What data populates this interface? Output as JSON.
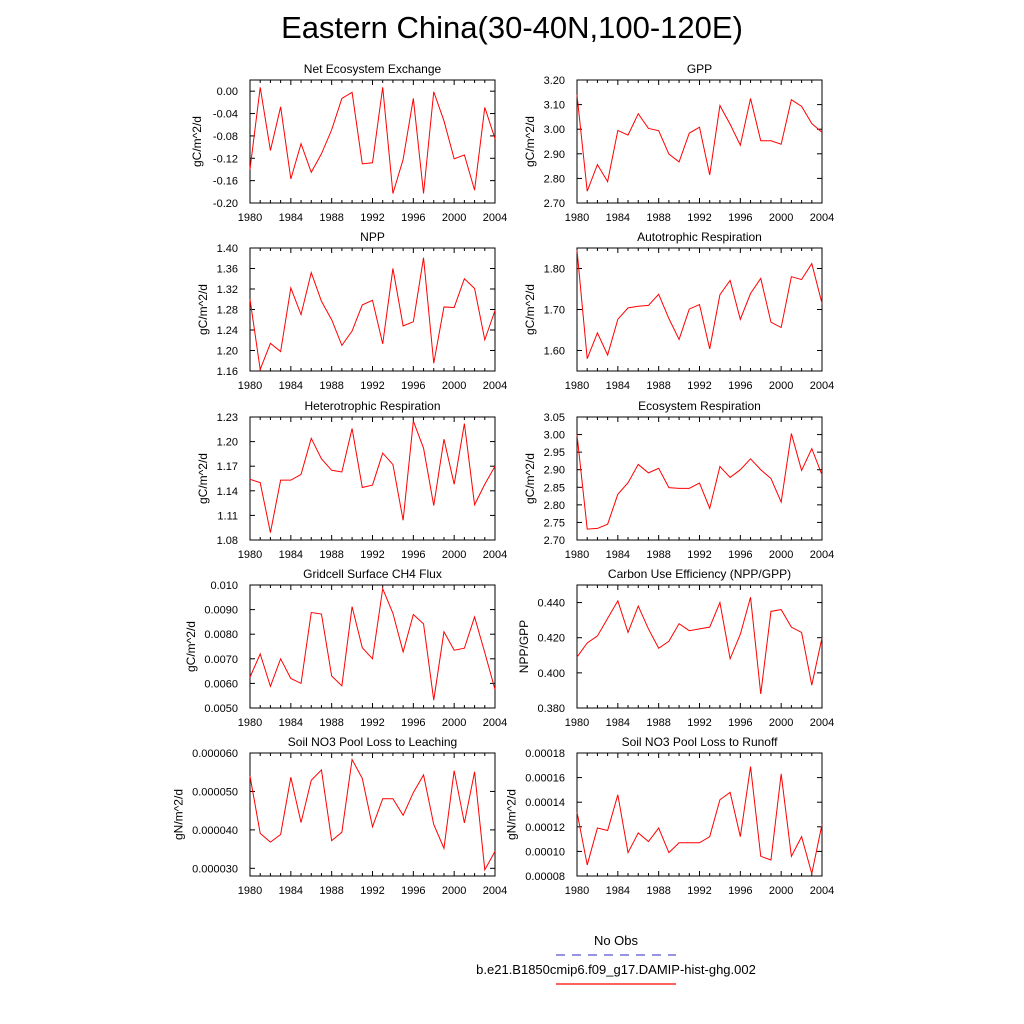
{
  "figure": {
    "title": "Eastern China(30-40N,100-120E)"
  },
  "legend": {
    "entries": [
      {
        "label": "No Obs",
        "color": "#5555cc",
        "style": "dashed"
      },
      {
        "label": "b.e21.B1850cmip6.f09_g17.DAMIP-hist-ghg.002",
        "color": "#ff0000",
        "style": "solid"
      }
    ]
  },
  "chart_data": [
    {
      "type": "line",
      "title": "Net Ecosystem Exchange",
      "xlabel": "",
      "ylabel": "gC/m^2/d",
      "xlim": [
        1980,
        2004
      ],
      "ylim": [
        -0.2,
        0.02
      ],
      "xticks": [
        "1980",
        "1984",
        "1988",
        "1992",
        "1996",
        "2000",
        "2004"
      ],
      "yticks": [
        "0.00",
        "-0.04",
        "-0.08",
        "-0.12",
        "-0.16",
        "-0.20"
      ],
      "ytick_values": [
        0.0,
        -0.04,
        -0.08,
        -0.12,
        -0.16,
        -0.2
      ],
      "x": [
        1980,
        1981,
        1982,
        1983,
        1984,
        1985,
        1986,
        1987,
        1988,
        1989,
        1990,
        1991,
        1992,
        1993,
        1994,
        1995,
        1996,
        1997,
        1998,
        1999,
        2000,
        2001,
        2002,
        2003,
        2004
      ],
      "series": [
        {
          "color": "#ff0000",
          "values": [
            -0.14,
            0.007,
            -0.106,
            -0.028,
            -0.157,
            -0.094,
            -0.145,
            -0.112,
            -0.069,
            -0.013,
            -0.002,
            -0.13,
            -0.128,
            0.007,
            -0.183,
            -0.122,
            -0.013,
            -0.183,
            -0.001,
            -0.053,
            -0.121,
            -0.114,
            -0.177,
            -0.029,
            -0.085
          ]
        }
      ]
    },
    {
      "type": "line",
      "title": "GPP",
      "xlabel": "",
      "ylabel": "gC/m^2/d",
      "xlim": [
        1980,
        2004
      ],
      "ylim": [
        2.7,
        3.2
      ],
      "xticks": [
        "1980",
        "1984",
        "1988",
        "1992",
        "1996",
        "2000",
        "2004"
      ],
      "yticks": [
        "3.20",
        "3.10",
        "3.00",
        "2.90",
        "2.80",
        "2.70"
      ],
      "ytick_values": [
        3.2,
        3.1,
        3.0,
        2.9,
        2.8,
        2.7
      ],
      "x": [
        1980,
        1981,
        1982,
        1983,
        1984,
        1985,
        1986,
        1987,
        1988,
        1989,
        1990,
        1991,
        1992,
        1993,
        1994,
        1995,
        1996,
        1997,
        1998,
        1999,
        2000,
        2001,
        2002,
        2003,
        2004
      ],
      "series": [
        {
          "color": "#ff0000",
          "values": [
            3.14,
            2.748,
            2.856,
            2.787,
            2.995,
            2.976,
            3.063,
            3.003,
            2.994,
            2.899,
            2.867,
            2.984,
            3.008,
            2.814,
            3.096,
            3.02,
            2.935,
            3.125,
            2.953,
            2.953,
            2.939,
            3.12,
            3.093,
            3.023,
            2.987
          ]
        }
      ]
    },
    {
      "type": "line",
      "title": "NPP",
      "xlabel": "",
      "ylabel": "gC/m^2/d",
      "xlim": [
        1980,
        2004
      ],
      "ylim": [
        1.16,
        1.4
      ],
      "xticks": [
        "1980",
        "1984",
        "1988",
        "1992",
        "1996",
        "2000",
        "2004"
      ],
      "yticks": [
        "1.40",
        "1.36",
        "1.32",
        "1.28",
        "1.24",
        "1.20",
        "1.16"
      ],
      "ytick_values": [
        1.4,
        1.36,
        1.32,
        1.28,
        1.24,
        1.2,
        1.16
      ],
      "x": [
        1980,
        1981,
        1982,
        1983,
        1984,
        1985,
        1986,
        1987,
        1988,
        1989,
        1990,
        1991,
        1992,
        1993,
        1994,
        1995,
        1996,
        1997,
        1998,
        1999,
        2000,
        2001,
        2002,
        2003,
        2004
      ],
      "series": [
        {
          "color": "#ff0000",
          "values": [
            1.3,
            1.163,
            1.214,
            1.198,
            1.322,
            1.27,
            1.352,
            1.296,
            1.26,
            1.21,
            1.238,
            1.289,
            1.298,
            1.213,
            1.36,
            1.248,
            1.256,
            1.381,
            1.175,
            1.285,
            1.284,
            1.34,
            1.321,
            1.221,
            1.278
          ]
        }
      ]
    },
    {
      "type": "line",
      "title": "Autotrophic Respiration",
      "xlabel": "",
      "ylabel": "gC/m^2/d",
      "xlim": [
        1980,
        2004
      ],
      "ylim": [
        1.55,
        1.85
      ],
      "xticks": [
        "1980",
        "1984",
        "1988",
        "1992",
        "1996",
        "2000",
        "2004"
      ],
      "yticks": [
        "1.80",
        "1.70",
        "1.60"
      ],
      "ytick_values": [
        1.8,
        1.7,
        1.6
      ],
      "x": [
        1980,
        1981,
        1982,
        1983,
        1984,
        1985,
        1986,
        1987,
        1988,
        1989,
        1990,
        1991,
        1992,
        1993,
        1994,
        1995,
        1996,
        1997,
        1998,
        1999,
        2000,
        2001,
        2002,
        2003,
        2004
      ],
      "series": [
        {
          "color": "#ff0000",
          "values": [
            1.845,
            1.58,
            1.643,
            1.589,
            1.676,
            1.704,
            1.708,
            1.71,
            1.737,
            1.678,
            1.627,
            1.701,
            1.712,
            1.604,
            1.736,
            1.771,
            1.676,
            1.739,
            1.776,
            1.669,
            1.656,
            1.78,
            1.773,
            1.812,
            1.715
          ]
        }
      ]
    },
    {
      "type": "line",
      "title": "Heterotrophic Respiration",
      "xlabel": "",
      "ylabel": "gC/m^2/d",
      "xlim": [
        1980,
        2004
      ],
      "ylim": [
        1.08,
        1.23
      ],
      "xticks": [
        "1980",
        "1984",
        "1988",
        "1992",
        "1996",
        "2000",
        "2004"
      ],
      "yticks": [
        "1.23",
        "1.20",
        "1.17",
        "1.14",
        "1.11",
        "1.08"
      ],
      "ytick_values": [
        1.23,
        1.2,
        1.17,
        1.14,
        1.11,
        1.08
      ],
      "x": [
        1980,
        1981,
        1982,
        1983,
        1984,
        1985,
        1986,
        1987,
        1988,
        1989,
        1990,
        1991,
        1992,
        1993,
        1994,
        1995,
        1996,
        1997,
        1998,
        1999,
        2000,
        2001,
        2002,
        2003,
        2004
      ],
      "series": [
        {
          "color": "#ff0000",
          "values": [
            1.154,
            1.15,
            1.089,
            1.153,
            1.153,
            1.16,
            1.204,
            1.179,
            1.165,
            1.163,
            1.216,
            1.144,
            1.147,
            1.186,
            1.172,
            1.104,
            1.225,
            1.192,
            1.122,
            1.203,
            1.148,
            1.222,
            1.123,
            1.148,
            1.17
          ]
        }
      ]
    },
    {
      "type": "line",
      "title": "Ecosystem Respiration",
      "xlabel": "",
      "ylabel": "gC/m^2/d",
      "xlim": [
        1980,
        2004
      ],
      "ylim": [
        2.7,
        3.05
      ],
      "xticks": [
        "1980",
        "1984",
        "1988",
        "1992",
        "1996",
        "2000",
        "2004"
      ],
      "yticks": [
        "3.05",
        "3.00",
        "2.95",
        "2.90",
        "2.85",
        "2.80",
        "2.75",
        "2.70"
      ],
      "ytick_values": [
        3.05,
        3.0,
        2.95,
        2.9,
        2.85,
        2.8,
        2.75,
        2.7
      ],
      "x": [
        1980,
        1981,
        1982,
        1983,
        1984,
        1985,
        1986,
        1987,
        1988,
        1989,
        1990,
        1991,
        1992,
        1993,
        1994,
        1995,
        1996,
        1997,
        1998,
        1999,
        2000,
        2001,
        2002,
        2003,
        2004
      ],
      "series": [
        {
          "color": "#ff0000",
          "values": [
            3.0,
            2.731,
            2.733,
            2.745,
            2.83,
            2.863,
            2.915,
            2.891,
            2.904,
            2.849,
            2.847,
            2.847,
            2.862,
            2.79,
            2.909,
            2.878,
            2.9,
            2.931,
            2.9,
            2.875,
            2.808,
            3.003,
            2.898,
            2.96,
            2.885
          ]
        }
      ]
    },
    {
      "type": "line",
      "title": "Gridcell Surface CH4 Flux",
      "xlabel": "",
      "ylabel": "gC/m^2/d",
      "xlim": [
        1980,
        2004
      ],
      "ylim": [
        0.005,
        0.01
      ],
      "xticks": [
        "1980",
        "1984",
        "1988",
        "1992",
        "1996",
        "2000",
        "2004"
      ],
      "yticks": [
        "0.010",
        "0.0090",
        "0.0080",
        "0.0070",
        "0.0060",
        "0.0050"
      ],
      "ytick_values": [
        0.01,
        0.009,
        0.008,
        0.007,
        0.006,
        0.005
      ],
      "x": [
        1980,
        1981,
        1982,
        1983,
        1984,
        1985,
        1986,
        1987,
        1988,
        1989,
        1990,
        1991,
        1992,
        1993,
        1994,
        1995,
        1996,
        1997,
        1998,
        1999,
        2000,
        2001,
        2002,
        2003,
        2004
      ],
      "series": [
        {
          "color": "#ff0000",
          "values": [
            0.00625,
            0.0072,
            0.00588,
            0.007,
            0.0062,
            0.006,
            0.00888,
            0.00882,
            0.0063,
            0.0059,
            0.00912,
            0.00745,
            0.007,
            0.00985,
            0.00885,
            0.00728,
            0.0088,
            0.00842,
            0.00532,
            0.0081,
            0.00735,
            0.00743,
            0.0087,
            0.00725,
            0.00575
          ]
        }
      ]
    },
    {
      "type": "line",
      "title": "Carbon Use Efficiency (NPP/GPP)",
      "xlabel": "",
      "ylabel": "NPP/GPP",
      "xlim": [
        1980,
        2004
      ],
      "ylim": [
        0.38,
        0.45
      ],
      "xticks": [
        "1980",
        "1984",
        "1988",
        "1992",
        "1996",
        "2000",
        "2004"
      ],
      "yticks": [
        "0.440",
        "0.420",
        "0.400",
        "0.380"
      ],
      "ytick_values": [
        0.44,
        0.42,
        0.4,
        0.38
      ],
      "x": [
        1980,
        1981,
        1982,
        1983,
        1984,
        1985,
        1986,
        1987,
        1988,
        1989,
        1990,
        1991,
        1992,
        1993,
        1994,
        1995,
        1996,
        1997,
        1998,
        1999,
        2000,
        2001,
        2002,
        2003,
        2004
      ],
      "series": [
        {
          "color": "#ff0000",
          "values": [
            0.409,
            0.417,
            0.421,
            0.431,
            0.441,
            0.423,
            0.438,
            0.425,
            0.414,
            0.418,
            0.428,
            0.424,
            0.425,
            0.426,
            0.44,
            0.408,
            0.422,
            0.443,
            0.388,
            0.435,
            0.436,
            0.426,
            0.423,
            0.393,
            0.42
          ]
        }
      ]
    },
    {
      "type": "line",
      "title": "Soil NO3 Pool Loss to Leaching",
      "xlabel": "",
      "ylabel": "gN/m^2/d",
      "xlim": [
        1980,
        2004
      ],
      "ylim": [
        2.8e-05,
        6e-05
      ],
      "xticks": [
        "1980",
        "1984",
        "1988",
        "1992",
        "1996",
        "2000",
        "2004"
      ],
      "yticks": [
        "0.000060",
        "0.000050",
        "0.000040",
        "0.000030"
      ],
      "ytick_values": [
        6e-05,
        5e-05,
        4e-05,
        3e-05
      ],
      "x": [
        1980,
        1981,
        1982,
        1983,
        1984,
        1985,
        1986,
        1987,
        1988,
        1989,
        1990,
        1991,
        1992,
        1993,
        1994,
        1995,
        1996,
        1997,
        1998,
        1999,
        2000,
        2001,
        2002,
        2003,
        2004
      ],
      "series": [
        {
          "color": "#ff0000",
          "values": [
            5.4e-05,
            3.91e-05,
            3.68e-05,
            3.88e-05,
            5.37e-05,
            4.19e-05,
            5.29e-05,
            5.56e-05,
            3.72e-05,
            3.94e-05,
            5.83e-05,
            5.34e-05,
            4.08e-05,
            4.81e-05,
            4.81e-05,
            4.38e-05,
            4.97e-05,
            5.43e-05,
            4.14e-05,
            3.52e-05,
            5.54e-05,
            4.18e-05,
            5.51e-05,
            2.96e-05,
            3.44e-05
          ]
        }
      ]
    },
    {
      "type": "line",
      "title": "Soil NO3 Pool Loss to Runoff",
      "xlabel": "",
      "ylabel": "gN/m^2/d",
      "xlim": [
        1980,
        2004
      ],
      "ylim": [
        8e-05,
        0.00018
      ],
      "xticks": [
        "1980",
        "1984",
        "1988",
        "1992",
        "1996",
        "2000",
        "2004"
      ],
      "yticks": [
        "0.00018",
        "0.00016",
        "0.00014",
        "0.00012",
        "0.00010",
        "0.00008"
      ],
      "ytick_values": [
        0.00018,
        0.00016,
        0.00014,
        0.00012,
        0.0001,
        8e-05
      ],
      "x": [
        1980,
        1981,
        1982,
        1983,
        1984,
        1985,
        1986,
        1987,
        1988,
        1989,
        1990,
        1991,
        1992,
        1993,
        1994,
        1995,
        1996,
        1997,
        1998,
        1999,
        2000,
        2001,
        2002,
        2003,
        2004
      ],
      "series": [
        {
          "color": "#ff0000",
          "values": [
            0.000132,
            8.9e-05,
            0.000119,
            0.000117,
            0.000146,
            9.9e-05,
            0.000115,
            0.000108,
            0.000119,
            9.9e-05,
            0.000107,
            0.000107,
            0.000107,
            0.000112,
            0.000142,
            0.000148,
            0.000112,
            0.000169,
            9.6e-05,
            9.3e-05,
            0.000163,
            9.6e-05,
            0.000112,
            8.2e-05,
            0.000122
          ]
        }
      ]
    }
  ]
}
